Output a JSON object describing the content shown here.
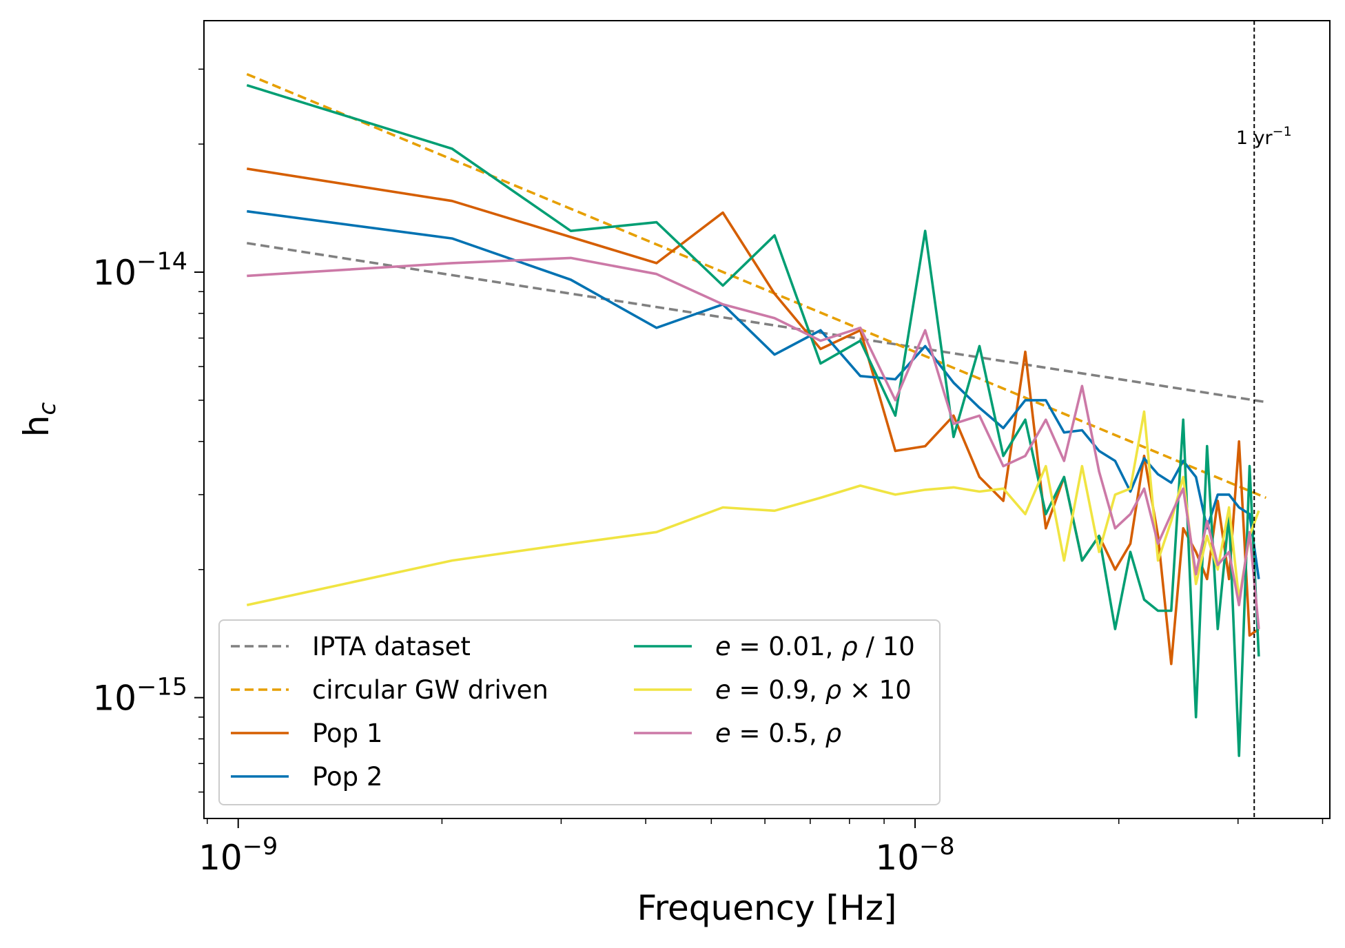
{
  "chart_data": {
    "type": "line",
    "xscale": "log",
    "yscale": "log",
    "xlabel": "Frequency [Hz]",
    "ylabel": "h_c",
    "xlim": [
      8.9e-10,
      4.1e-08
    ],
    "ylim": [
      5.2e-16,
      3.9e-14
    ],
    "xticks": [
      {
        "value": 1e-09,
        "base": "10",
        "exp": "−9"
      },
      {
        "value": 1e-08,
        "base": "10",
        "exp": "−8"
      }
    ],
    "yticks": [
      {
        "value": 1e-15,
        "base": "10",
        "exp": "−15"
      },
      {
        "value": 1e-14,
        "base": "10",
        "exp": "−14"
      }
    ],
    "vline": {
      "x": 3.17e-08,
      "label": "1 yr",
      "label_exp": "−1",
      "color": "#000000"
    },
    "series": [
      {
        "name": "IPTA dataset",
        "label_parts": [
          {
            "t": "IPTA dataset",
            "i": false
          }
        ],
        "color": "#808080",
        "dash": "13 7",
        "x": [
          1.03e-09,
          3.3e-08
        ],
        "y": [
          1.17e-14,
          4.95e-15
        ]
      },
      {
        "name": "circular GW driven",
        "label_parts": [
          {
            "t": "circular GW driven",
            "i": false
          }
        ],
        "color": "#e69f00",
        "dash": "13 7",
        "x": [
          1.03e-09,
          3.3e-08
        ],
        "y": [
          2.92e-14,
          2.95e-15
        ]
      },
      {
        "name": "Pop 1",
        "label_parts": [
          {
            "t": "Pop 1",
            "i": false
          }
        ],
        "color": "#d55e00",
        "dash": "",
        "x": [
          1.03e-09,
          2.07e-09,
          4.15e-09,
          5.2e-09,
          6.2e-09,
          7.25e-09,
          8.3e-09,
          9.35e-09,
          1.035e-08,
          1.14e-08,
          1.245e-08,
          1.35e-08,
          1.455e-08,
          1.56e-08,
          1.66e-08,
          1.765e-08,
          1.87e-08,
          1.975e-08,
          2.08e-08,
          2.18e-08,
          2.285e-08,
          2.39e-08,
          2.49e-08,
          2.6e-08,
          2.7e-08,
          2.8e-08,
          2.91e-08,
          3.01e-08,
          3.12e-08,
          3.22e-08
        ],
        "y": [
          1.75e-14,
          1.47e-14,
          1.05e-14,
          1.38e-14,
          8.9e-15,
          6.6e-15,
          7.3e-15,
          3.8e-15,
          3.9e-15,
          4.6e-15,
          3.3e-15,
          2.9e-15,
          6.5e-15,
          2.5e-15,
          3.3e-15,
          2.1e-15,
          2.4e-15,
          2e-15,
          2.3e-15,
          3.7e-15,
          2.4e-15,
          1.2e-15,
          2.5e-15,
          2.2e-15,
          1.9e-15,
          2.9e-15,
          1.9e-15,
          4e-15,
          1.4e-15,
          1.45e-15
        ]
      },
      {
        "name": "Pop 2",
        "label_parts": [
          {
            "t": "Pop 2",
            "i": false
          }
        ],
        "color": "#0072b2",
        "dash": "",
        "x": [
          1.03e-09,
          2.07e-09,
          3.1e-09,
          4.15e-09,
          5.2e-09,
          6.2e-09,
          7.25e-09,
          8.3e-09,
          9.35e-09,
          1.035e-08,
          1.14e-08,
          1.245e-08,
          1.35e-08,
          1.455e-08,
          1.56e-08,
          1.66e-08,
          1.765e-08,
          1.87e-08,
          1.975e-08,
          2.08e-08,
          2.18e-08,
          2.285e-08,
          2.39e-08,
          2.49e-08,
          2.6e-08,
          2.7e-08,
          2.8e-08,
          2.91e-08,
          3.01e-08,
          3.12e-08,
          3.22e-08
        ],
        "y": [
          1.39e-14,
          1.2e-14,
          9.6e-15,
          7.4e-15,
          8.4e-15,
          6.4e-15,
          7.3e-15,
          5.7e-15,
          5.6e-15,
          6.7e-15,
          5.5e-15,
          4.8e-15,
          4.3e-15,
          5e-15,
          5e-15,
          4.2e-15,
          4.25e-15,
          3.8e-15,
          3.6e-15,
          3.05e-15,
          3.65e-15,
          3.35e-15,
          3.2e-15,
          3.6e-15,
          3.3e-15,
          2.5e-15,
          3e-15,
          3e-15,
          2.8e-15,
          2.7e-15,
          1.9e-15
        ]
      },
      {
        "name": "e = 0.01, ρ / 10",
        "label_parts": [
          {
            "t": "e",
            "i": true
          },
          {
            "t": " = 0.01,  ",
            "i": false
          },
          {
            "t": "ρ",
            "i": true
          },
          {
            "t": " / 10",
            "i": false
          }
        ],
        "color": "#009e73",
        "dash": "",
        "x": [
          1.03e-09,
          2.07e-09,
          3.1e-09,
          4.15e-09,
          5.2e-09,
          6.2e-09,
          7.25e-09,
          8.3e-09,
          9.35e-09,
          1.035e-08,
          1.14e-08,
          1.245e-08,
          1.35e-08,
          1.455e-08,
          1.56e-08,
          1.66e-08,
          1.765e-08,
          1.87e-08,
          1.975e-08,
          2.08e-08,
          2.18e-08,
          2.285e-08,
          2.39e-08,
          2.49e-08,
          2.6e-08,
          2.7e-08,
          2.8e-08,
          2.91e-08,
          3.01e-08,
          3.12e-08,
          3.22e-08
        ],
        "y": [
          2.75e-14,
          1.95e-14,
          1.25e-14,
          1.31e-14,
          9.3e-15,
          1.22e-14,
          6.1e-15,
          6.9e-15,
          4.6e-15,
          1.25e-14,
          4.1e-15,
          6.7e-15,
          3.7e-15,
          4.5e-15,
          2.7e-15,
          3.3e-15,
          2.1e-15,
          2.4e-15,
          1.45e-15,
          2.2e-15,
          1.7e-15,
          1.6e-15,
          1.6e-15,
          4.5e-15,
          9e-16,
          3.9e-15,
          1.45e-15,
          2.7e-15,
          7.3e-16,
          3.5e-15,
          1.25e-15
        ]
      },
      {
        "name": "e = 0.9, ρ × 10",
        "label_parts": [
          {
            "t": "e",
            "i": true
          },
          {
            "t": " = 0.9,  ",
            "i": false
          },
          {
            "t": "ρ",
            "i": true
          },
          {
            "t": " × 10",
            "i": false
          }
        ],
        "color": "#f0e442",
        "dash": "",
        "x": [
          1.03e-09,
          2.07e-09,
          3.1e-09,
          4.15e-09,
          5.2e-09,
          6.2e-09,
          7.25e-09,
          8.3e-09,
          9.35e-09,
          1.035e-08,
          1.14e-08,
          1.245e-08,
          1.35e-08,
          1.455e-08,
          1.56e-08,
          1.66e-08,
          1.765e-08,
          1.87e-08,
          1.975e-08,
          2.08e-08,
          2.18e-08,
          2.285e-08,
          2.39e-08,
          2.49e-08,
          2.6e-08,
          2.7e-08,
          2.8e-08,
          2.91e-08,
          3.01e-08,
          3.12e-08,
          3.22e-08
        ],
        "y": [
          1.65e-15,
          2.1e-15,
          2.3e-15,
          2.45e-15,
          2.8e-15,
          2.75e-15,
          2.95e-15,
          3.15e-15,
          3e-15,
          3.08e-15,
          3.12e-15,
          3.05e-15,
          3.1e-15,
          2.7e-15,
          3.5e-15,
          2.1e-15,
          3.5e-15,
          2.2e-15,
          3e-15,
          3.1e-15,
          4.7e-15,
          2.1e-15,
          2.6e-15,
          3.3e-15,
          1.85e-15,
          2.4e-15,
          2e-15,
          2.8e-15,
          1.7e-15,
          2.4e-15,
          2.75e-15
        ]
      },
      {
        "name": "e = 0.5, ρ",
        "label_parts": [
          {
            "t": "e",
            "i": true
          },
          {
            "t": " = 0.5,  ",
            "i": false
          },
          {
            "t": "ρ",
            "i": true
          }
        ],
        "color": "#cc79a7",
        "dash": "",
        "x": [
          1.03e-09,
          2.07e-09,
          3.1e-09,
          4.15e-09,
          5.2e-09,
          6.2e-09,
          7.25e-09,
          8.3e-09,
          9.35e-09,
          1.035e-08,
          1.14e-08,
          1.245e-08,
          1.35e-08,
          1.455e-08,
          1.56e-08,
          1.66e-08,
          1.765e-08,
          1.87e-08,
          1.975e-08,
          2.08e-08,
          2.18e-08,
          2.285e-08,
          2.39e-08,
          2.49e-08,
          2.6e-08,
          2.7e-08,
          2.8e-08,
          2.91e-08,
          3.01e-08,
          3.12e-08,
          3.22e-08
        ],
        "y": [
          9.8e-15,
          1.05e-14,
          1.08e-14,
          9.9e-15,
          8.4e-15,
          7.8e-15,
          6.9e-15,
          7.4e-15,
          5e-15,
          7.3e-15,
          4.4e-15,
          4.6e-15,
          3.5e-15,
          3.7e-15,
          4.5e-15,
          3.6e-15,
          5.4e-15,
          3.4e-15,
          2.5e-15,
          2.7e-15,
          3.1e-15,
          2.3e-15,
          2.7e-15,
          3.1e-15,
          1.95e-15,
          2.6e-15,
          2.05e-15,
          2.2e-15,
          1.65e-15,
          2.45e-15,
          1.45e-15
        ]
      }
    ],
    "legend": {
      "location": "lower-left",
      "columns": 2
    }
  }
}
